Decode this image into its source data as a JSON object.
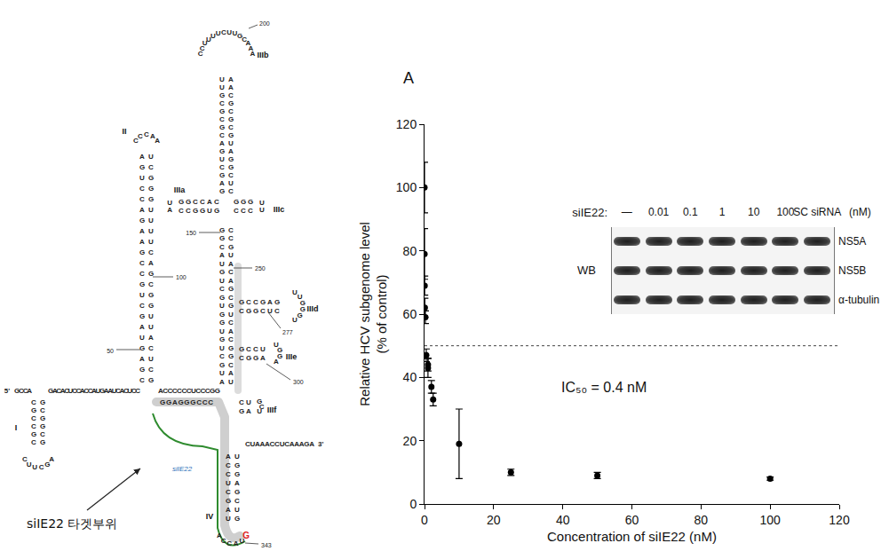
{
  "chart_data": {
    "type": "scatter",
    "panel_label": "A",
    "x_label": "Concentration of siIE22 (nM)",
    "y_label": [
      "Relative HCV subgenome level",
      "(% of control)"
    ],
    "x": [
      0,
      0.01,
      0.05,
      0.1,
      0.25,
      0.5,
      1,
      1,
      2,
      2.5,
      10,
      25,
      50,
      100
    ],
    "values": [
      100,
      79,
      69,
      62,
      59,
      47,
      44,
      43,
      37,
      33,
      19,
      10,
      9,
      8
    ],
    "errors": [
      8,
      8,
      3,
      3,
      2,
      2,
      2,
      3,
      2,
      2,
      11,
      1,
      1,
      0.5
    ],
    "color": "#000000",
    "marker": "circle",
    "xlim": [
      0,
      120
    ],
    "ylim": [
      0,
      120
    ],
    "xticks": [
      0,
      20,
      40,
      60,
      80,
      100,
      120
    ],
    "yticks": [
      0,
      20,
      40,
      60,
      80,
      100,
      120
    ],
    "grid": false,
    "reference_line": 50,
    "annotation": "IC₅₀ = 0.4 nM",
    "inset": {
      "treatment_label": "siIE22:",
      "lanes": [
        "—",
        "0.01",
        "0.1",
        "1",
        "10",
        "100",
        "SC siRNA"
      ],
      "unit": "(nM)",
      "method": "WB",
      "rows": [
        "NS5A",
        "NS5B",
        "α-tubulin"
      ]
    }
  },
  "structure": {
    "five_prime": "5'",
    "three_prime": "3'",
    "five_prime_strand": [
      "GCCA",
      "GACACUCCACCAUGAAUCACUCC",
      "ACCCCCCUCCCGG"
    ],
    "junction_strand": "GGAGGGCCC",
    "three_prime_strand": "CUAAACCUCAAAGA",
    "trunk": [
      "AU",
      "UA",
      "GC",
      "CG",
      "UG",
      "GC",
      "UA",
      "GC",
      "GU",
      "UG",
      "GC",
      "CG",
      "UA",
      "GC",
      "UA",
      "AU",
      "CG",
      "GC",
      "GC"
    ],
    "domains": [
      {
        "label": "I",
        "pairs": [
          "CG",
          "GC",
          "CG",
          "CG",
          "GC",
          "CG"
        ],
        "loop": "CUUCGA"
      },
      {
        "label": "II",
        "pairs": [
          "CG",
          "GC",
          "AU",
          "GC",
          "UA",
          "AU",
          "GU",
          "CG",
          "UG",
          "GC",
          "CG",
          "CA",
          "GC",
          "AU",
          "AU",
          "GU",
          "AU",
          "CG",
          "CG",
          "UG",
          "GC",
          "AU"
        ],
        "loop": "CCCAA"
      },
      {
        "label": "IIIa",
        "pairs": [
          "CG",
          "AU",
          "CG",
          "CG",
          "GC",
          "GC"
        ],
        "loop": "UA"
      },
      {
        "label": "IIIb",
        "pairs": [
          "GC",
          "AU",
          "GC",
          "CG",
          "UG",
          "GA",
          "AU",
          "CG",
          "GC",
          "CG",
          "GC",
          "CG",
          "GC",
          "UA",
          "UA"
        ],
        "loop": "CCUUUUCUUGCAAA"
      },
      {
        "label": "IIIc",
        "pairs": [
          "GC",
          "GC",
          "GC"
        ],
        "loop": "UU"
      },
      {
        "label": "IIId",
        "pairs": [
          "GC",
          "CG",
          "CG",
          "GC",
          "AU",
          "GC"
        ],
        "loop": "UUGGGU"
      },
      {
        "label": "IIIe",
        "pairs": [
          "GC",
          "CG",
          "CG",
          "UA"
        ],
        "loop": "UGGA"
      },
      {
        "label": "IIIf",
        "pairs": [
          "CG",
          "UA"
        ],
        "loop": "GCU"
      },
      {
        "label": "IV",
        "pairs": [
          "AU",
          "CG",
          "CG",
          "UA",
          "CG",
          "GC",
          "AU",
          "UG"
        ],
        "loop": "ACCAU",
        "highlighted_base": "G"
      }
    ],
    "position_marks": [
      50,
      100,
      150,
      200,
      250,
      277,
      300,
      343
    ],
    "sirna_label": "siIE22",
    "target_label": "siIE22 타겟부위"
  }
}
